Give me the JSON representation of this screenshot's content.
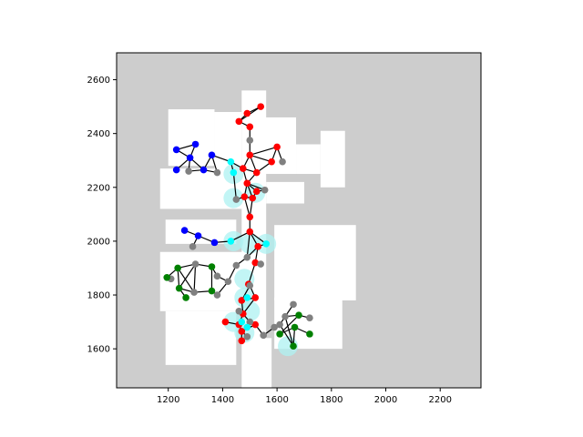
{
  "chart_data": {
    "type": "scatter",
    "title": "",
    "xlabel": "",
    "ylabel": "",
    "xlim": [
      1010,
      2350
    ],
    "ylim": [
      1455,
      2700
    ],
    "xticks": [
      1200,
      1400,
      1600,
      1800,
      2000,
      2200
    ],
    "yticks": [
      1600,
      1800,
      2000,
      2200,
      2400,
      2600
    ],
    "grid": false,
    "legend": "none",
    "background_map": {
      "unknown_color": "#cdcdcd",
      "free_color": "#ffffff",
      "occupied_color": "#000000",
      "extent": {
        "x": [
          1010,
          2350
        ],
        "y": [
          1455,
          2700
        ]
      },
      "free_regions": [
        [
          1200,
          1370,
          2490,
          2280
        ],
        [
          1370,
          1470,
          2480,
          2200
        ],
        [
          1470,
          1560,
          2560,
          1455
        ],
        [
          1540,
          1670,
          2460,
          2250
        ],
        [
          1670,
          1760,
          2360,
          2250
        ],
        [
          1760,
          1850,
          2410,
          2200
        ],
        [
          1170,
          1490,
          2270,
          2120
        ],
        [
          1560,
          1700,
          2220,
          2140
        ],
        [
          1190,
          1450,
          2080,
          1990
        ],
        [
          1590,
          1890,
          2060,
          1780
        ],
        [
          1170,
          1480,
          1960,
          1740
        ],
        [
          1190,
          1450,
          1740,
          1540
        ],
        [
          1590,
          1840,
          1790,
          1600
        ],
        [
          1520,
          1580,
          1640,
          1455
        ]
      ]
    },
    "highlight_color": "#aef2f2",
    "highlight_points": [
      {
        "x": 1440,
        "y": 2250
      },
      {
        "x": 1440,
        "y": 2160
      },
      {
        "x": 1520,
        "y": 2180
      },
      {
        "x": 1440,
        "y": 2000
      },
      {
        "x": 1500,
        "y": 1990
      },
      {
        "x": 1560,
        "y": 1990
      },
      {
        "x": 1480,
        "y": 1860
      },
      {
        "x": 1480,
        "y": 1790
      },
      {
        "x": 1500,
        "y": 1740
      },
      {
        "x": 1440,
        "y": 1700
      },
      {
        "x": 1480,
        "y": 1660
      },
      {
        "x": 1640,
        "y": 1610
      }
    ],
    "series": [
      {
        "color": "#ff0000",
        "points": [
          [
            1460,
            2445
          ],
          [
            1490,
            2475
          ],
          [
            1540,
            2500
          ],
          [
            1500,
            2425
          ],
          [
            1600,
            2350
          ],
          [
            1580,
            2295
          ],
          [
            1500,
            2320
          ],
          [
            1475,
            2270
          ],
          [
            1525,
            2255
          ],
          [
            1490,
            2215
          ],
          [
            1525,
            2185
          ],
          [
            1480,
            2165
          ],
          [
            1510,
            2160
          ],
          [
            1500,
            2090
          ],
          [
            1500,
            2035
          ],
          [
            1530,
            1980
          ],
          [
            1520,
            1920
          ],
          [
            1495,
            1840
          ],
          [
            1470,
            1780
          ],
          [
            1520,
            1790
          ],
          [
            1475,
            1730
          ],
          [
            1460,
            1690
          ],
          [
            1410,
            1700
          ],
          [
            1470,
            1665
          ],
          [
            1520,
            1690
          ],
          [
            1470,
            1630
          ]
        ]
      },
      {
        "color": "#0000ff",
        "points": [
          [
            1230,
            2340
          ],
          [
            1300,
            2360
          ],
          [
            1280,
            2310
          ],
          [
            1230,
            2265
          ],
          [
            1330,
            2265
          ],
          [
            1360,
            2320
          ],
          [
            1260,
            2040
          ],
          [
            1310,
            2020
          ],
          [
            1370,
            1995
          ]
        ]
      },
      {
        "color": "#808080",
        "points": [
          [
            1500,
            2375
          ],
          [
            1620,
            2295
          ],
          [
            1380,
            2255
          ],
          [
            1275,
            2260
          ],
          [
            1555,
            2190
          ],
          [
            1450,
            2155
          ],
          [
            1290,
            1980
          ],
          [
            1300,
            1915
          ],
          [
            1490,
            1940
          ],
          [
            1540,
            1915
          ],
          [
            1450,
            1910
          ],
          [
            1500,
            1835
          ],
          [
            1460,
            1740
          ],
          [
            1500,
            1700
          ],
          [
            1490,
            1645
          ],
          [
            1550,
            1650
          ],
          [
            1590,
            1680
          ],
          [
            1630,
            1720
          ],
          [
            1660,
            1765
          ],
          [
            1720,
            1715
          ],
          [
            1610,
            1690
          ],
          [
            1295,
            1810
          ],
          [
            1210,
            1860
          ],
          [
            1380,
            1870
          ],
          [
            1420,
            1850
          ],
          [
            1380,
            1800
          ]
        ]
      },
      {
        "color": "#00ffff",
        "points": [
          [
            1430,
            2295
          ],
          [
            1440,
            2255
          ],
          [
            1430,
            2000
          ],
          [
            1560,
            1990
          ],
          [
            1490,
            1790
          ],
          [
            1470,
            1700
          ],
          [
            1490,
            1680
          ]
        ]
      },
      {
        "color": "#008000",
        "points": [
          [
            1195,
            1865
          ],
          [
            1235,
            1900
          ],
          [
            1240,
            1825
          ],
          [
            1265,
            1790
          ],
          [
            1360,
            1905
          ],
          [
            1360,
            1815
          ],
          [
            1610,
            1655
          ],
          [
            1660,
            1610
          ],
          [
            1680,
            1725
          ],
          [
            1720,
            1655
          ],
          [
            1665,
            1680
          ]
        ]
      }
    ],
    "edges": [
      [
        1460,
        2445,
        1490,
        2475
      ],
      [
        1460,
        2445,
        1540,
        2500
      ],
      [
        1490,
        2475,
        1540,
        2500
      ],
      [
        1460,
        2445,
        1500,
        2425
      ],
      [
        1500,
        2425,
        1500,
        2375
      ],
      [
        1500,
        2375,
        1500,
        2320
      ],
      [
        1500,
        2320,
        1600,
        2350
      ],
      [
        1600,
        2350,
        1620,
        2295
      ],
      [
        1600,
        2350,
        1580,
        2295
      ],
      [
        1500,
        2320,
        1580,
        2295
      ],
      [
        1580,
        2295,
        1525,
        2255
      ],
      [
        1500,
        2320,
        1475,
        2270
      ],
      [
        1500,
        2320,
        1525,
        2255
      ],
      [
        1475,
        2270,
        1525,
        2255
      ],
      [
        1475,
        2270,
        1490,
        2215
      ],
      [
        1525,
        2255,
        1490,
        2215
      ],
      [
        1490,
        2215,
        1525,
        2185
      ],
      [
        1490,
        2215,
        1555,
        2190
      ],
      [
        1525,
        2185,
        1555,
        2190
      ],
      [
        1490,
        2215,
        1480,
        2165
      ],
      [
        1490,
        2215,
        1510,
        2160
      ],
      [
        1480,
        2165,
        1510,
        2160
      ],
      [
        1480,
        2165,
        1450,
        2155
      ],
      [
        1525,
        2185,
        1510,
        2160
      ],
      [
        1480,
        2165,
        1500,
        2090
      ],
      [
        1510,
        2160,
        1500,
        2090
      ],
      [
        1500,
        2090,
        1500,
        2035
      ],
      [
        1500,
        2035,
        1530,
        1980
      ],
      [
        1500,
        2035,
        1560,
        1990
      ],
      [
        1530,
        1980,
        1560,
        1990
      ],
      [
        1500,
        2035,
        1490,
        1940
      ],
      [
        1530,
        1980,
        1490,
        1940
      ],
      [
        1530,
        1980,
        1520,
        1920
      ],
      [
        1520,
        1920,
        1540,
        1915
      ],
      [
        1490,
        1940,
        1450,
        1910
      ],
      [
        1520,
        1920,
        1495,
        1840
      ],
      [
        1495,
        1840,
        1500,
        1835
      ],
      [
        1500,
        1835,
        1470,
        1780
      ],
      [
        1500,
        1835,
        1520,
        1790
      ],
      [
        1470,
        1780,
        1520,
        1790
      ],
      [
        1470,
        1780,
        1475,
        1730
      ],
      [
        1520,
        1790,
        1475,
        1730
      ],
      [
        1475,
        1730,
        1460,
        1740
      ],
      [
        1475,
        1730,
        1460,
        1690
      ],
      [
        1475,
        1730,
        1500,
        1700
      ],
      [
        1460,
        1690,
        1410,
        1700
      ],
      [
        1460,
        1690,
        1470,
        1665
      ],
      [
        1470,
        1665,
        1520,
        1690
      ],
      [
        1470,
        1665,
        1470,
        1630
      ],
      [
        1470,
        1665,
        1490,
        1645
      ],
      [
        1520,
        1690,
        1550,
        1650
      ],
      [
        1550,
        1650,
        1590,
        1680
      ],
      [
        1590,
        1680,
        1610,
        1690
      ],
      [
        1610,
        1690,
        1630,
        1720
      ],
      [
        1630,
        1720,
        1660,
        1765
      ],
      [
        1630,
        1720,
        1680,
        1725
      ],
      [
        1680,
        1725,
        1720,
        1715
      ],
      [
        1610,
        1655,
        1665,
        1680
      ],
      [
        1665,
        1680,
        1720,
        1655
      ],
      [
        1610,
        1655,
        1680,
        1725
      ],
      [
        1630,
        1720,
        1660,
        1610
      ],
      [
        1665,
        1680,
        1660,
        1610
      ],
      [
        1610,
        1690,
        1660,
        1610
      ],
      [
        1230,
        2340,
        1300,
        2360
      ],
      [
        1230,
        2340,
        1280,
        2310
      ],
      [
        1300,
        2360,
        1280,
        2310
      ],
      [
        1280,
        2310,
        1230,
        2265
      ],
      [
        1280,
        2310,
        1330,
        2265
      ],
      [
        1280,
        2310,
        1275,
        2260
      ],
      [
        1330,
        2265,
        1360,
        2320
      ],
      [
        1360,
        2320,
        1380,
        2255
      ],
      [
        1360,
        2320,
        1430,
        2295
      ],
      [
        1330,
        2265,
        1380,
        2255
      ],
      [
        1275,
        2260,
        1330,
        2265
      ],
      [
        1430,
        2295,
        1440,
        2255
      ],
      [
        1430,
        2295,
        1475,
        2270
      ],
      [
        1440,
        2255,
        1450,
        2155
      ],
      [
        1260,
        2040,
        1310,
        2020
      ],
      [
        1310,
        2020,
        1370,
        1995
      ],
      [
        1370,
        1995,
        1430,
        2000
      ],
      [
        1430,
        2000,
        1500,
        2035
      ],
      [
        1310,
        2020,
        1290,
        1980
      ],
      [
        1195,
        1865,
        1235,
        1900
      ],
      [
        1235,
        1900,
        1300,
        1915
      ],
      [
        1300,
        1915,
        1360,
        1905
      ],
      [
        1360,
        1905,
        1380,
        1870
      ],
      [
        1235,
        1900,
        1240,
        1825
      ],
      [
        1240,
        1825,
        1265,
        1790
      ],
      [
        1240,
        1825,
        1295,
        1810
      ],
      [
        1300,
        1915,
        1295,
        1810
      ],
      [
        1235,
        1900,
        1295,
        1810
      ],
      [
        1300,
        1915,
        1240,
        1825
      ],
      [
        1360,
        1905,
        1360,
        1815
      ],
      [
        1360,
        1815,
        1380,
        1800
      ],
      [
        1380,
        1870,
        1420,
        1850
      ],
      [
        1380,
        1800,
        1420,
        1850
      ],
      [
        1295,
        1810,
        1360,
        1815
      ],
      [
        1195,
        1865,
        1210,
        1860
      ],
      [
        1420,
        1850,
        1450,
        1910
      ]
    ]
  }
}
